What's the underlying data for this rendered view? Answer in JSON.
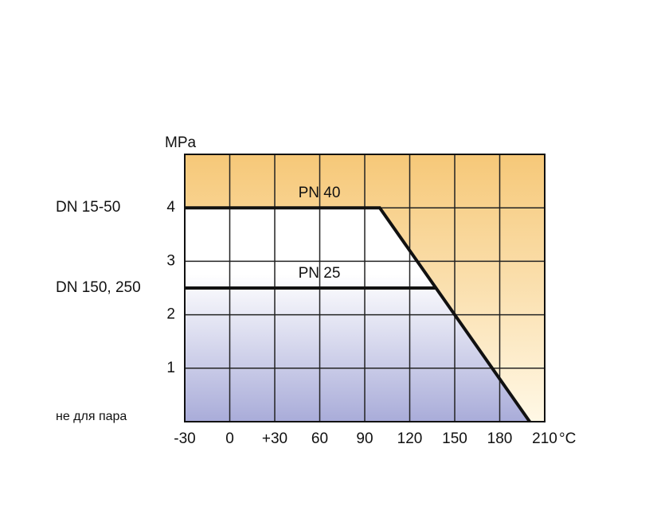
{
  "chart_data": {
    "type": "line",
    "y_label": "MPa",
    "x_unit": "°C",
    "xlim": [
      -30,
      210
    ],
    "ylim": [
      0,
      5
    ],
    "xticks": [
      -30,
      0,
      {
        "value": 30,
        "label": "+30"
      },
      60,
      90,
      120,
      150,
      180,
      210
    ],
    "yticks": [
      1,
      2,
      3,
      4
    ],
    "grid": true,
    "series": [
      {
        "name": "PN 40",
        "color": "#111111",
        "x": [
          -30,
          100,
          200
        ],
        "values": [
          4,
          4,
          0
        ]
      },
      {
        "name": "PN 25",
        "color": "#111111",
        "x": [
          -30,
          137.5
        ],
        "values": [
          2.5,
          2.5
        ]
      }
    ],
    "annotations": [
      {
        "text": "DN 15-50",
        "y": 4
      },
      {
        "text": "DN 150, 250",
        "y": 2.5
      },
      {
        "text": "не для пара",
        "y": 0
      }
    ]
  }
}
